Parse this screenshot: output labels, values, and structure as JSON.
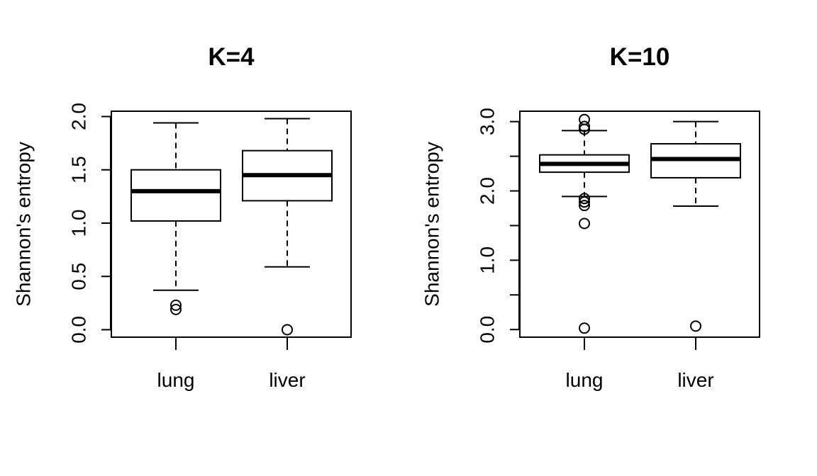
{
  "chart_data": [
    {
      "type": "box",
      "title": "K=4",
      "ylabel": "Shannon's entropy",
      "xlabel": "",
      "ylim": [
        -0.07,
        2.05
      ],
      "yticks": [
        0.0,
        0.5,
        1.0,
        1.5,
        2.0
      ],
      "yticklabels": [
        "0.0",
        "0.5",
        "1.0",
        "1.5",
        "2.0"
      ],
      "categories": [
        "lung",
        "liver"
      ],
      "boxes": [
        {
          "category": "lung",
          "whisker_low": 0.37,
          "q1": 1.02,
          "median": 1.3,
          "q3": 1.5,
          "whisker_high": 1.94,
          "outliers": [
            0.19,
            0.23
          ]
        },
        {
          "category": "liver",
          "whisker_low": 0.59,
          "q1": 1.21,
          "median": 1.45,
          "q3": 1.68,
          "whisker_high": 1.98,
          "outliers": [
            0.0
          ]
        }
      ]
    },
    {
      "type": "box",
      "title": "K=10",
      "ylabel": "Shannon's entropy",
      "xlabel": "",
      "ylim": [
        -0.11,
        3.15
      ],
      "yticks": [
        0.0,
        0.5,
        1.0,
        1.5,
        2.0,
        2.5,
        3.0
      ],
      "yticklabels": [
        "0.0",
        "",
        "1.0",
        "",
        "2.0",
        "",
        "3.0"
      ],
      "categories": [
        "lung",
        "liver"
      ],
      "boxes": [
        {
          "category": "lung",
          "whisker_low": 1.92,
          "q1": 2.27,
          "median": 2.39,
          "q3": 2.52,
          "whisker_high": 2.87,
          "outliers": [
            0.02,
            1.53,
            1.79,
            1.84,
            1.89,
            2.89,
            2.93,
            3.03
          ]
        },
        {
          "category": "liver",
          "whisker_low": 1.78,
          "q1": 2.19,
          "median": 2.46,
          "q3": 2.68,
          "whisker_high": 3.0,
          "outliers": [
            0.05
          ]
        }
      ]
    }
  ]
}
